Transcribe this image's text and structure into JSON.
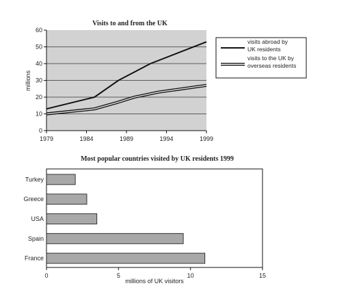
{
  "chart_data": [
    {
      "type": "line",
      "title": "Visits to and from the UK",
      "xlabel": "",
      "ylabel": "millions",
      "x_ticks": [
        "1979",
        "1984",
        "1989",
        "1994",
        "1999"
      ],
      "y_ticks": [
        "0",
        "10",
        "20",
        "30",
        "40",
        "50",
        "60"
      ],
      "xlim": [
        1979,
        1999
      ],
      "ylim": [
        0,
        60
      ],
      "grid": "horizontal",
      "legend_position": "right",
      "series": [
        {
          "name": "visits abroad by UK residents",
          "name_lines": [
            "visits abroad by",
            "UK residents"
          ],
          "style": "single",
          "x": [
            1979,
            1985,
            1988,
            1992,
            1999
          ],
          "y": [
            13,
            20,
            30,
            40,
            53
          ]
        },
        {
          "name": "visits to the UK by overseas residents",
          "name_lines": [
            "visits to the UK by",
            "overseas residents"
          ],
          "style": "double",
          "x": [
            1979,
            1985,
            1988,
            1990,
            1993,
            1999
          ],
          "y": [
            10,
            13,
            17,
            20,
            23,
            27
          ]
        }
      ]
    },
    {
      "type": "bar",
      "orientation": "horizontal",
      "title": "Most popular countries visited by UK residents 1999",
      "xlabel": "millions of UK visitors",
      "ylabel": "",
      "categories": [
        "Turkey",
        "Greece",
        "USA",
        "Spain",
        "France"
      ],
      "values": [
        2,
        2.8,
        3.5,
        9.5,
        11
      ],
      "x_ticks": [
        "0",
        "5",
        "10",
        "15"
      ],
      "xlim": [
        0,
        15
      ],
      "grid": "none"
    }
  ],
  "colors": {
    "plot_bg": "#d2d2d2",
    "line": "#111111",
    "bar_fill": "#a8a8a8",
    "grid": "#333333"
  }
}
